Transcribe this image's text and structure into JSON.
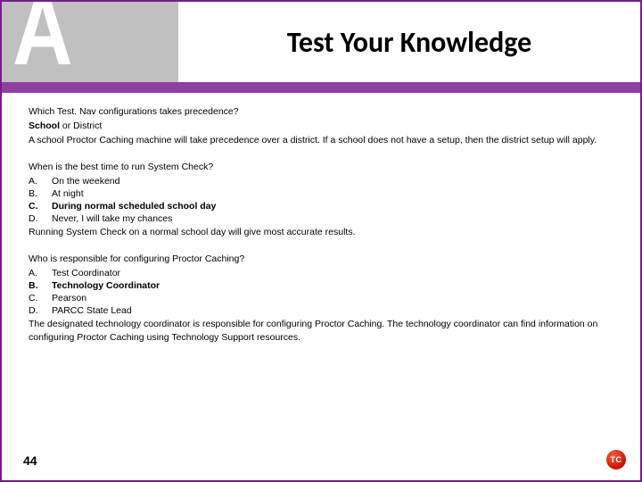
{
  "header": {
    "logo_letter": "A",
    "title": "Test Your Knowledge"
  },
  "colors": {
    "slide_border": "#7a1a8c",
    "purple_bar": "#8e3fa0",
    "logo_bg": "#c0c0c0",
    "tc_badge_bg": "#c41200",
    "text": "#000000"
  },
  "q1": {
    "question": "Which Test. Nav configurations takes precedence?",
    "answer_bold": "School",
    "answer_rest": " or District",
    "explain": "A school Proctor Caching machine will take precedence over a district. If a school does not have a setup, then the district setup will apply."
  },
  "q2": {
    "question": "When is the best time to run System Check?",
    "options": [
      {
        "letter": "A.",
        "text": "On the weekend",
        "bold": false
      },
      {
        "letter": "B.",
        "text": "At night",
        "bold": false
      },
      {
        "letter": "C.",
        "text": "During normal scheduled school day",
        "bold": true
      },
      {
        "letter": "D.",
        "text": "Never, I will take my chances",
        "bold": false
      }
    ],
    "explain": "Running System Check on a normal school day will give most accurate results."
  },
  "q3": {
    "question": "Who is responsible for configuring Proctor Caching?",
    "options": [
      {
        "letter": "A.",
        "text": "Test Coordinator",
        "bold": false
      },
      {
        "letter": "B.",
        "text": "Technology Coordinator",
        "bold": true
      },
      {
        "letter": "C.",
        "text": "Pearson",
        "bold": false
      },
      {
        "letter": "D.",
        "text": "PARCC State Lead",
        "bold": false
      }
    ],
    "explain": "The designated technology coordinator is responsible for configuring Proctor Caching. The technology coordinator can find information on configuring Proctor Caching  using  Technology Support resources."
  },
  "footer": {
    "page_number": "44",
    "badge": "TC"
  }
}
